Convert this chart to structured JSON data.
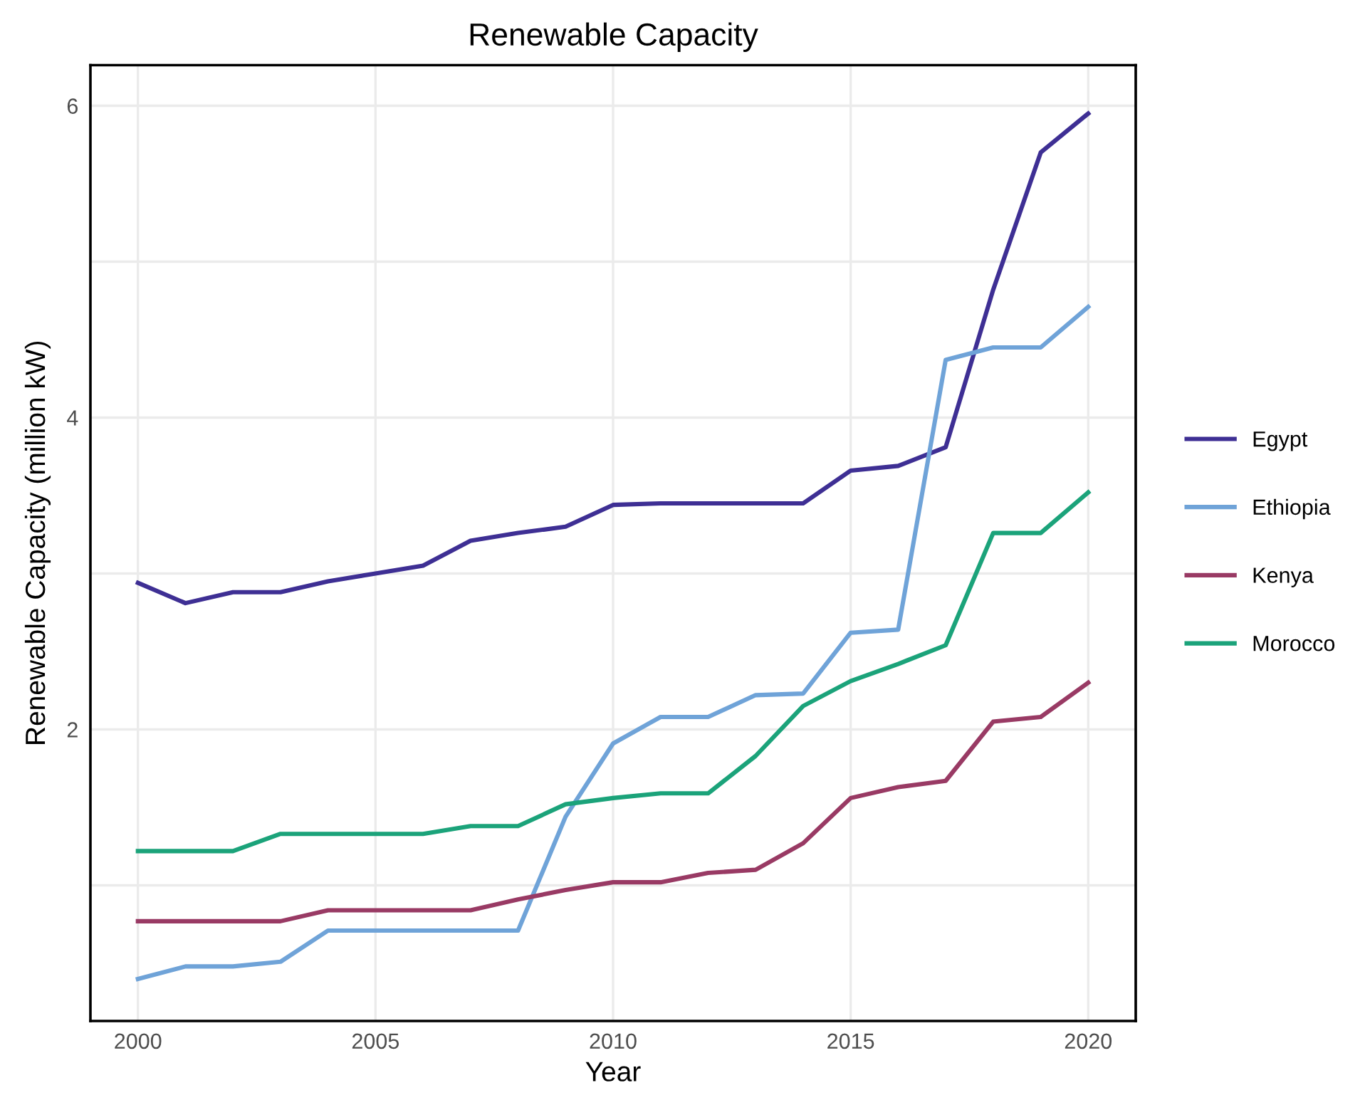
{
  "chart_data": {
    "type": "line",
    "title": "Renewable Capacity",
    "xlabel": "Year",
    "ylabel": "Renewable Capacity (million kW)",
    "x": [
      2000,
      2001,
      2002,
      2003,
      2004,
      2005,
      2006,
      2007,
      2008,
      2009,
      2010,
      2011,
      2012,
      2013,
      2014,
      2015,
      2016,
      2017,
      2018,
      2019,
      2020
    ],
    "series": [
      {
        "name": "Egypt",
        "color": "#3e2f94",
        "values": [
          2.94,
          2.81,
          2.88,
          2.88,
          2.95,
          3.0,
          3.05,
          3.21,
          3.26,
          3.3,
          3.44,
          3.45,
          3.45,
          3.45,
          3.45,
          3.66,
          3.69,
          3.81,
          4.82,
          5.7,
          5.95
        ]
      },
      {
        "name": "Ethiopia",
        "color": "#6fa3d8",
        "values": [
          0.4,
          0.48,
          0.48,
          0.51,
          0.71,
          0.71,
          0.71,
          0.71,
          0.71,
          1.44,
          1.91,
          2.08,
          2.08,
          2.22,
          2.23,
          2.62,
          2.64,
          4.37,
          4.45,
          4.45,
          4.71
        ]
      },
      {
        "name": "Kenya",
        "color": "#993a64",
        "values": [
          0.77,
          0.77,
          0.77,
          0.77,
          0.84,
          0.84,
          0.84,
          0.84,
          0.91,
          0.97,
          1.02,
          1.02,
          1.08,
          1.1,
          1.27,
          1.56,
          1.63,
          1.67,
          2.05,
          2.08,
          2.3
        ]
      },
      {
        "name": "Morocco",
        "color": "#1ba37a",
        "values": [
          1.22,
          1.22,
          1.22,
          1.33,
          1.33,
          1.33,
          1.33,
          1.38,
          1.38,
          1.52,
          1.56,
          1.59,
          1.59,
          1.83,
          2.15,
          2.31,
          2.42,
          2.54,
          3.26,
          3.26,
          3.52
        ]
      }
    ],
    "xlim": [
      1999.0,
      2021.0
    ],
    "xticks": [
      2000,
      2005,
      2010,
      2015,
      2020
    ],
    "ylim": [
      0.13,
      6.26
    ],
    "yticks": [
      {
        "value": 1,
        "label": null
      },
      2,
      {
        "value": 3,
        "label": null
      },
      4,
      {
        "value": 5,
        "label": null
      },
      6
    ],
    "grid": true,
    "legend": "right",
    "marker": "none",
    "line_style": "solid"
  }
}
